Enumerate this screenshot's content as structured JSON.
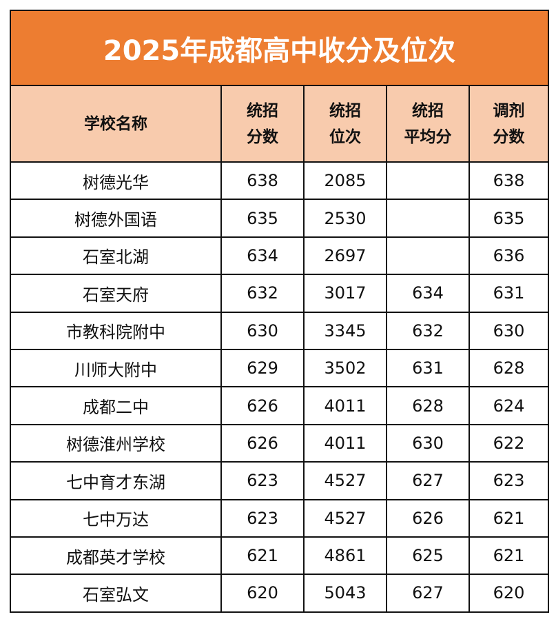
{
  "title": "2025年成都高中收分及位次",
  "table": {
    "header": [
      [
        "学校名称"
      ],
      [
        "统招",
        "分数"
      ],
      [
        "统招",
        "位次"
      ],
      [
        "统招",
        "平均分"
      ],
      [
        "调剂",
        "分数"
      ]
    ],
    "rows": [
      [
        "树德光华",
        638,
        2085,
        null,
        638
      ],
      [
        "树德外国语",
        635,
        2530,
        null,
        635
      ],
      [
        "石室北湖",
        634,
        2697,
        null,
        636
      ],
      [
        "石室天府",
        632,
        3017,
        634,
        631
      ],
      [
        "市教科院附中",
        630,
        3345,
        632,
        630
      ],
      [
        "川师大附中",
        629,
        3502,
        631,
        628
      ],
      [
        "成都二中",
        626,
        4011,
        628,
        624
      ],
      [
        "树德淮州学校",
        626,
        4011,
        630,
        622
      ],
      [
        "七中育才东湖",
        623,
        4527,
        627,
        623
      ],
      [
        "七中万达",
        623,
        4527,
        626,
        621
      ],
      [
        "成都英才学校",
        621,
        4861,
        625,
        621
      ],
      [
        "石室弘文",
        620,
        5043,
        627,
        620
      ]
    ]
  }
}
